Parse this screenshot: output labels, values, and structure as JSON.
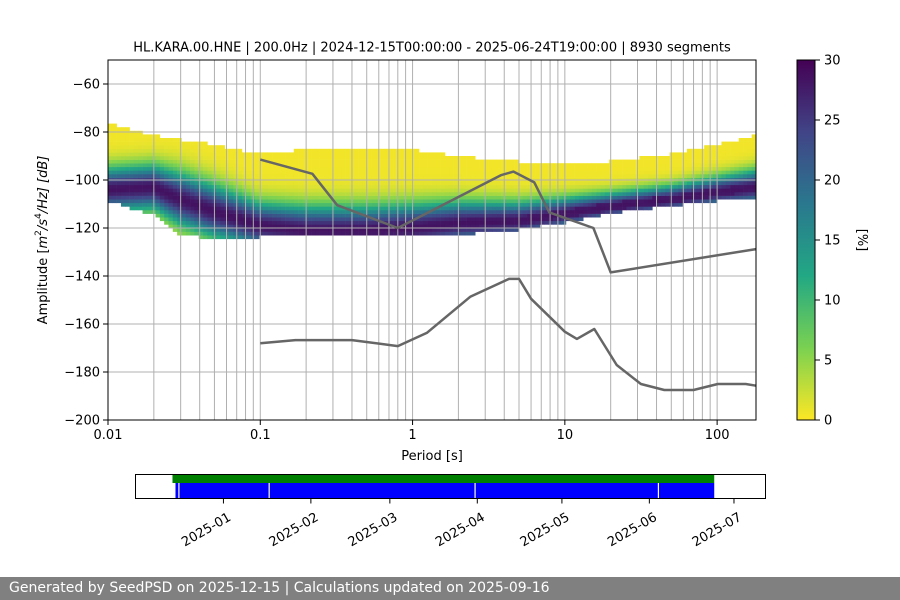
{
  "chart_data": [
    {
      "type": "heatmap",
      "title": "HL.KARA.00.HNE | 200.0Hz | 2024-12-15T00:00:00 - 2025-06-24T19:00:00 | 8930 segments",
      "xlabel": "Period [s]",
      "ylabel_parts": [
        "Amplitude [",
        "m",
        "2",
        "/s",
        "4",
        "/Hz] [dB]"
      ],
      "xscale": "log",
      "xlim": [
        0.01,
        180
      ],
      "ylim": [
        -200,
        -50
      ],
      "x_ticks": [
        0.01,
        0.1,
        1,
        10,
        100
      ],
      "x_tick_labels": [
        "0.01",
        "0.1",
        "1",
        "10",
        "100"
      ],
      "y_ticks": [
        -200,
        -180,
        -160,
        -140,
        -120,
        -100,
        -80,
        -60
      ],
      "y_tick_labels": [
        "−200",
        "−180",
        "−160",
        "−140",
        "−120",
        "−100",
        "−80",
        "−60"
      ],
      "grid": true,
      "colorbar": {
        "label": "[%]",
        "range": [
          0,
          30
        ],
        "ticks": [
          0,
          5,
          10,
          15,
          20,
          25,
          30
        ],
        "tick_labels": [
          "0",
          "5",
          "10",
          "15",
          "20",
          "25",
          "30"
        ],
        "colormap": [
          "#fde725",
          "#7ad151",
          "#22a884",
          "#2a788e",
          "#414487",
          "#440154"
        ]
      },
      "density_band": {
        "period": [
          0.007,
          0.01,
          0.02,
          0.03,
          0.05,
          0.1,
          0.2,
          0.5,
          1,
          2,
          5,
          10,
          20,
          50,
          100,
          180
        ],
        "mode": [
          -104,
          -104,
          -103,
          -108,
          -113,
          -119,
          -121,
          -121,
          -120,
          -118,
          -117,
          -114,
          -111,
          -108,
          -105,
          -103
        ],
        "upper": [
          -72,
          -77,
          -82,
          -84,
          -86,
          -90,
          -88,
          -87,
          -88,
          -91,
          -93,
          -94,
          -93,
          -90,
          -86,
          -82
        ],
        "lower": [
          -106,
          -108,
          -114,
          -122,
          -124,
          -123,
          -123,
          -122,
          -122,
          -122,
          -120,
          -117,
          -113,
          -110,
          -108,
          -107
        ]
      },
      "reference_curves": [
        {
          "period": [
            0.1,
            0.22,
            0.32,
            0.8,
            3.8,
            4.6,
            6.3,
            7.9,
            15.4,
            20,
            180
          ],
          "db": [
            -91.5,
            -97.4,
            -110.5,
            -120,
            -98,
            -96.5,
            -101,
            -113.5,
            -120,
            -138.5,
            -128.8
          ]
        },
        {
          "period": [
            0.1,
            0.17,
            0.4,
            0.8,
            1.24,
            2.4,
            4.3,
            5,
            6,
            10,
            12,
            15.6,
            21.9,
            31.6,
            45,
            70,
            101,
            154,
            180
          ],
          "db": [
            -168,
            -166.7,
            -166.7,
            -169.2,
            -163.7,
            -148.6,
            -141.2,
            -141.2,
            -149.5,
            -163.2,
            -166.2,
            -162.1,
            -177.1,
            -185,
            -187.5,
            -187.5,
            -185,
            -185,
            -185.7
          ]
        }
      ]
    },
    {
      "type": "timeline",
      "x_tick_labels": [
        "2025-01",
        "2025-02",
        "2025-03",
        "2025-04",
        "2025-05",
        "2025-06",
        "2025-07"
      ],
      "available_span": [
        "2024-12-15",
        "2025-06-24"
      ],
      "gaps": [
        "2024-12-16",
        "2025-01-17",
        "2025-03-31",
        "2025-06-04"
      ],
      "colors": {
        "available": "#008000",
        "used": "#0000ff"
      }
    }
  ],
  "footer": {
    "text": "Generated by SeedPSD on 2025-12-15 | Calculations updated on 2025-09-16"
  }
}
